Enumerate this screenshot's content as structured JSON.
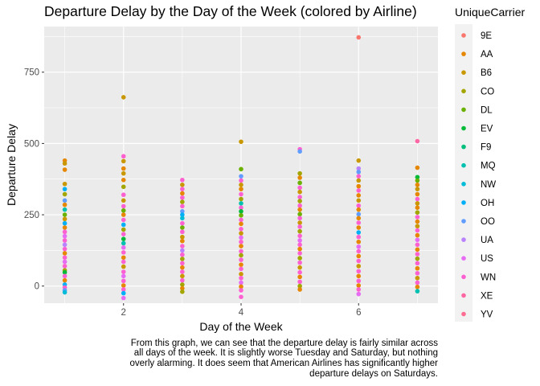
{
  "chart_data": {
    "type": "scatter",
    "title": "Departure Delay by the Day of the Week (colored by Airline)",
    "xlabel": "Day of the Week",
    "ylabel": "Departure Delay",
    "xlim": [
      0.65,
      7.35
    ],
    "ylim": [
      -60,
      910
    ],
    "x_ticks": [
      2,
      4,
      6
    ],
    "y_ticks": [
      0,
      250,
      500,
      750
    ],
    "grid": true,
    "legend": {
      "title": "UniqueCarrier",
      "position": "right",
      "entries": [
        {
          "name": "9E",
          "color": "#F8766D"
        },
        {
          "name": "AA",
          "color": "#E58700"
        },
        {
          "name": "B6",
          "color": "#C99800"
        },
        {
          "name": "CO",
          "color": "#A3A500"
        },
        {
          "name": "DL",
          "color": "#6BB100"
        },
        {
          "name": "EV",
          "color": "#00BA38"
        },
        {
          "name": "F9",
          "color": "#00BF7D"
        },
        {
          "name": "MQ",
          "color": "#00C0AF"
        },
        {
          "name": "NW",
          "color": "#00BCD8"
        },
        {
          "name": "OH",
          "color": "#00B0F6"
        },
        {
          "name": "OO",
          "color": "#619CFF"
        },
        {
          "name": "UA",
          "color": "#B983FF"
        },
        {
          "name": "US",
          "color": "#E76BF3"
        },
        {
          "name": "WN",
          "color": "#FD61D1"
        },
        {
          "name": "XE",
          "color": "#FF67A4"
        },
        {
          "name": "YV",
          "color": "#FF6C91"
        }
      ]
    },
    "points": [
      {
        "x": 1,
        "y": 440,
        "c": "AA"
      },
      {
        "x": 1,
        "y": 430,
        "c": "B6"
      },
      {
        "x": 1,
        "y": 408,
        "c": "AA"
      },
      {
        "x": 1,
        "y": 358,
        "c": "B6"
      },
      {
        "x": 1,
        "y": 340,
        "c": "OH"
      },
      {
        "x": 1,
        "y": 322,
        "c": "CO"
      },
      {
        "x": 1,
        "y": 300,
        "c": "OO"
      },
      {
        "x": 1,
        "y": 285,
        "c": "AA"
      },
      {
        "x": 1,
        "y": 268,
        "c": "MQ"
      },
      {
        "x": 1,
        "y": 250,
        "c": "DL"
      },
      {
        "x": 1,
        "y": 235,
        "c": "B6"
      },
      {
        "x": 1,
        "y": 220,
        "c": "OH"
      },
      {
        "x": 1,
        "y": 205,
        "c": "AA"
      },
      {
        "x": 1,
        "y": 190,
        "c": "WN"
      },
      {
        "x": 1,
        "y": 175,
        "c": "US"
      },
      {
        "x": 1,
        "y": 160,
        "c": "WN"
      },
      {
        "x": 1,
        "y": 145,
        "c": "UA"
      },
      {
        "x": 1,
        "y": 130,
        "c": "WN"
      },
      {
        "x": 1,
        "y": 115,
        "c": "AA"
      },
      {
        "x": 1,
        "y": 100,
        "c": "WN"
      },
      {
        "x": 1,
        "y": 85,
        "c": "US"
      },
      {
        "x": 1,
        "y": 70,
        "c": "WN"
      },
      {
        "x": 1,
        "y": 55,
        "c": "CO"
      },
      {
        "x": 1,
        "y": 48,
        "c": "EV"
      },
      {
        "x": 1,
        "y": 35,
        "c": "WN"
      },
      {
        "x": 1,
        "y": 20,
        "c": "AA"
      },
      {
        "x": 1,
        "y": 5,
        "c": "OH"
      },
      {
        "x": 1,
        "y": -5,
        "c": "WN"
      },
      {
        "x": 1,
        "y": -15,
        "c": "OO"
      },
      {
        "x": 1,
        "y": -22,
        "c": "NW"
      },
      {
        "x": 2,
        "y": 662,
        "c": "B6"
      },
      {
        "x": 2,
        "y": 455,
        "c": "WN"
      },
      {
        "x": 2,
        "y": 438,
        "c": "B6"
      },
      {
        "x": 2,
        "y": 412,
        "c": "AA"
      },
      {
        "x": 2,
        "y": 395,
        "c": "B6"
      },
      {
        "x": 2,
        "y": 372,
        "c": "AA"
      },
      {
        "x": 2,
        "y": 348,
        "c": "CO"
      },
      {
        "x": 2,
        "y": 320,
        "c": "WN"
      },
      {
        "x": 2,
        "y": 300,
        "c": "B6"
      },
      {
        "x": 2,
        "y": 280,
        "c": "WN"
      },
      {
        "x": 2,
        "y": 265,
        "c": "DL"
      },
      {
        "x": 2,
        "y": 250,
        "c": "AA"
      },
      {
        "x": 2,
        "y": 232,
        "c": "WN"
      },
      {
        "x": 2,
        "y": 215,
        "c": "OH"
      },
      {
        "x": 2,
        "y": 198,
        "c": "CO"
      },
      {
        "x": 2,
        "y": 182,
        "c": "WN"
      },
      {
        "x": 2,
        "y": 165,
        "c": "EV"
      },
      {
        "x": 2,
        "y": 150,
        "c": "MQ"
      },
      {
        "x": 2,
        "y": 135,
        "c": "US"
      },
      {
        "x": 2,
        "y": 118,
        "c": "WN"
      },
      {
        "x": 2,
        "y": 100,
        "c": "AA"
      },
      {
        "x": 2,
        "y": 85,
        "c": "WN"
      },
      {
        "x": 2,
        "y": 68,
        "c": "B6"
      },
      {
        "x": 2,
        "y": 50,
        "c": "WN"
      },
      {
        "x": 2,
        "y": 35,
        "c": "US"
      },
      {
        "x": 2,
        "y": 18,
        "c": "WN"
      },
      {
        "x": 2,
        "y": 2,
        "c": "AA"
      },
      {
        "x": 2,
        "y": -12,
        "c": "WN"
      },
      {
        "x": 2,
        "y": -25,
        "c": "OH"
      },
      {
        "x": 2,
        "y": -42,
        "c": "US"
      },
      {
        "x": 3,
        "y": 372,
        "c": "WN"
      },
      {
        "x": 3,
        "y": 355,
        "c": "B6"
      },
      {
        "x": 3,
        "y": 340,
        "c": "WN"
      },
      {
        "x": 3,
        "y": 325,
        "c": "AA"
      },
      {
        "x": 3,
        "y": 310,
        "c": "WN"
      },
      {
        "x": 3,
        "y": 295,
        "c": "CO"
      },
      {
        "x": 3,
        "y": 280,
        "c": "WN"
      },
      {
        "x": 3,
        "y": 262,
        "c": "OO"
      },
      {
        "x": 3,
        "y": 250,
        "c": "OH"
      },
      {
        "x": 3,
        "y": 238,
        "c": "NW"
      },
      {
        "x": 3,
        "y": 220,
        "c": "WN"
      },
      {
        "x": 3,
        "y": 205,
        "c": "DL"
      },
      {
        "x": 3,
        "y": 190,
        "c": "WN"
      },
      {
        "x": 3,
        "y": 172,
        "c": "B6"
      },
      {
        "x": 3,
        "y": 158,
        "c": "AA"
      },
      {
        "x": 3,
        "y": 140,
        "c": "WN"
      },
      {
        "x": 3,
        "y": 125,
        "c": "UA"
      },
      {
        "x": 3,
        "y": 110,
        "c": "WN"
      },
      {
        "x": 3,
        "y": 95,
        "c": "CO"
      },
      {
        "x": 3,
        "y": 80,
        "c": "WN"
      },
      {
        "x": 3,
        "y": 65,
        "c": "AA"
      },
      {
        "x": 3,
        "y": 50,
        "c": "WN"
      },
      {
        "x": 3,
        "y": 35,
        "c": "B6"
      },
      {
        "x": 3,
        "y": 20,
        "c": "WN"
      },
      {
        "x": 3,
        "y": 5,
        "c": "CO"
      },
      {
        "x": 3,
        "y": -8,
        "c": "AA"
      },
      {
        "x": 3,
        "y": -20,
        "c": "CO"
      },
      {
        "x": 4,
        "y": 506,
        "c": "B6"
      },
      {
        "x": 4,
        "y": 410,
        "c": "DL"
      },
      {
        "x": 4,
        "y": 385,
        "c": "OO"
      },
      {
        "x": 4,
        "y": 370,
        "c": "WN"
      },
      {
        "x": 4,
        "y": 355,
        "c": "B6"
      },
      {
        "x": 4,
        "y": 340,
        "c": "AA"
      },
      {
        "x": 4,
        "y": 322,
        "c": "WN"
      },
      {
        "x": 4,
        "y": 305,
        "c": "CO"
      },
      {
        "x": 4,
        "y": 290,
        "c": "MQ"
      },
      {
        "x": 4,
        "y": 275,
        "c": "WN"
      },
      {
        "x": 4,
        "y": 262,
        "c": "EV"
      },
      {
        "x": 4,
        "y": 248,
        "c": "DL"
      },
      {
        "x": 4,
        "y": 232,
        "c": "WN"
      },
      {
        "x": 4,
        "y": 218,
        "c": "AA"
      },
      {
        "x": 4,
        "y": 200,
        "c": "WN"
      },
      {
        "x": 4,
        "y": 185,
        "c": "B6"
      },
      {
        "x": 4,
        "y": 170,
        "c": "US"
      },
      {
        "x": 4,
        "y": 155,
        "c": "WN"
      },
      {
        "x": 4,
        "y": 140,
        "c": "AA"
      },
      {
        "x": 4,
        "y": 122,
        "c": "WN"
      },
      {
        "x": 4,
        "y": 108,
        "c": "CO"
      },
      {
        "x": 4,
        "y": 92,
        "c": "WN"
      },
      {
        "x": 4,
        "y": 75,
        "c": "AA"
      },
      {
        "x": 4,
        "y": 60,
        "c": "WN"
      },
      {
        "x": 4,
        "y": 42,
        "c": "B6"
      },
      {
        "x": 4,
        "y": 28,
        "c": "WN"
      },
      {
        "x": 4,
        "y": 12,
        "c": "US"
      },
      {
        "x": 4,
        "y": -2,
        "c": "AA"
      },
      {
        "x": 4,
        "y": -15,
        "c": "WN"
      },
      {
        "x": 4,
        "y": -38,
        "c": "WN"
      },
      {
        "x": 5,
        "y": 480,
        "c": "WN"
      },
      {
        "x": 5,
        "y": 472,
        "c": "OO"
      },
      {
        "x": 5,
        "y": 395,
        "c": "CO"
      },
      {
        "x": 5,
        "y": 380,
        "c": "AA"
      },
      {
        "x": 5,
        "y": 362,
        "c": "DL"
      },
      {
        "x": 5,
        "y": 345,
        "c": "WN"
      },
      {
        "x": 5,
        "y": 330,
        "c": "B6"
      },
      {
        "x": 5,
        "y": 312,
        "c": "WN"
      },
      {
        "x": 5,
        "y": 298,
        "c": "CO"
      },
      {
        "x": 5,
        "y": 282,
        "c": "WN"
      },
      {
        "x": 5,
        "y": 268,
        "c": "AA"
      },
      {
        "x": 5,
        "y": 252,
        "c": "DL"
      },
      {
        "x": 5,
        "y": 238,
        "c": "WN"
      },
      {
        "x": 5,
        "y": 222,
        "c": "B6"
      },
      {
        "x": 5,
        "y": 208,
        "c": "WN"
      },
      {
        "x": 5,
        "y": 192,
        "c": "CO"
      },
      {
        "x": 5,
        "y": 176,
        "c": "WN"
      },
      {
        "x": 5,
        "y": 160,
        "c": "US"
      },
      {
        "x": 5,
        "y": 145,
        "c": "WN"
      },
      {
        "x": 5,
        "y": 130,
        "c": "AA"
      },
      {
        "x": 5,
        "y": 115,
        "c": "WN"
      },
      {
        "x": 5,
        "y": 98,
        "c": "CO"
      },
      {
        "x": 5,
        "y": 82,
        "c": "WN"
      },
      {
        "x": 5,
        "y": 65,
        "c": "B6"
      },
      {
        "x": 5,
        "y": 48,
        "c": "WN"
      },
      {
        "x": 5,
        "y": 32,
        "c": "AA"
      },
      {
        "x": 5,
        "y": 15,
        "c": "WN"
      },
      {
        "x": 5,
        "y": 0,
        "c": "CO"
      },
      {
        "x": 5,
        "y": -12,
        "c": "AA"
      },
      {
        "x": 6,
        "y": 872,
        "c": "9E"
      },
      {
        "x": 6,
        "y": 440,
        "c": "B6"
      },
      {
        "x": 6,
        "y": 412,
        "c": "UA"
      },
      {
        "x": 6,
        "y": 400,
        "c": "OO"
      },
      {
        "x": 6,
        "y": 385,
        "c": "WN"
      },
      {
        "x": 6,
        "y": 370,
        "c": "B6"
      },
      {
        "x": 6,
        "y": 350,
        "c": "AA"
      },
      {
        "x": 6,
        "y": 335,
        "c": "WN"
      },
      {
        "x": 6,
        "y": 318,
        "c": "AA"
      },
      {
        "x": 6,
        "y": 300,
        "c": "B6"
      },
      {
        "x": 6,
        "y": 282,
        "c": "WN"
      },
      {
        "x": 6,
        "y": 268,
        "c": "AA"
      },
      {
        "x": 6,
        "y": 252,
        "c": "OO"
      },
      {
        "x": 6,
        "y": 238,
        "c": "AA"
      },
      {
        "x": 6,
        "y": 222,
        "c": "WN"
      },
      {
        "x": 6,
        "y": 205,
        "c": "AA"
      },
      {
        "x": 6,
        "y": 188,
        "c": "OH"
      },
      {
        "x": 6,
        "y": 172,
        "c": "WN"
      },
      {
        "x": 6,
        "y": 155,
        "c": "AA"
      },
      {
        "x": 6,
        "y": 138,
        "c": "US"
      },
      {
        "x": 6,
        "y": 122,
        "c": "WN"
      },
      {
        "x": 6,
        "y": 105,
        "c": "AA"
      },
      {
        "x": 6,
        "y": 88,
        "c": "WN"
      },
      {
        "x": 6,
        "y": 70,
        "c": "B6"
      },
      {
        "x": 6,
        "y": 52,
        "c": "WN"
      },
      {
        "x": 6,
        "y": 35,
        "c": "AA"
      },
      {
        "x": 6,
        "y": 18,
        "c": "WN"
      },
      {
        "x": 6,
        "y": 2,
        "c": "AA"
      },
      {
        "x": 6,
        "y": -12,
        "c": "WN"
      },
      {
        "x": 6,
        "y": -28,
        "c": "US"
      },
      {
        "x": 7,
        "y": 508,
        "c": "XE"
      },
      {
        "x": 7,
        "y": 415,
        "c": "AA"
      },
      {
        "x": 7,
        "y": 382,
        "c": "EV"
      },
      {
        "x": 7,
        "y": 370,
        "c": "DL"
      },
      {
        "x": 7,
        "y": 355,
        "c": "AA"
      },
      {
        "x": 7,
        "y": 340,
        "c": "B6"
      },
      {
        "x": 7,
        "y": 322,
        "c": "AA"
      },
      {
        "x": 7,
        "y": 305,
        "c": "WN"
      },
      {
        "x": 7,
        "y": 290,
        "c": "B6"
      },
      {
        "x": 7,
        "y": 275,
        "c": "AA"
      },
      {
        "x": 7,
        "y": 258,
        "c": "CO"
      },
      {
        "x": 7,
        "y": 242,
        "c": "WN"
      },
      {
        "x": 7,
        "y": 226,
        "c": "AA"
      },
      {
        "x": 7,
        "y": 210,
        "c": "B6"
      },
      {
        "x": 7,
        "y": 195,
        "c": "WN"
      },
      {
        "x": 7,
        "y": 178,
        "c": "AA"
      },
      {
        "x": 7,
        "y": 162,
        "c": "US"
      },
      {
        "x": 7,
        "y": 145,
        "c": "WN"
      },
      {
        "x": 7,
        "y": 128,
        "c": "AA"
      },
      {
        "x": 7,
        "y": 112,
        "c": "WN"
      },
      {
        "x": 7,
        "y": 96,
        "c": "CO"
      },
      {
        "x": 7,
        "y": 80,
        "c": "WN"
      },
      {
        "x": 7,
        "y": 62,
        "c": "AA"
      },
      {
        "x": 7,
        "y": 45,
        "c": "WN"
      },
      {
        "x": 7,
        "y": 28,
        "c": "B6"
      },
      {
        "x": 7,
        "y": 12,
        "c": "WN"
      },
      {
        "x": 7,
        "y": -3,
        "c": "AA"
      },
      {
        "x": 7,
        "y": -18,
        "c": "MQ"
      }
    ]
  },
  "caption": [
    "From this graph, we can see that the departure delay is fairly similar across",
    "all days of the week. It is slightly worse Tuesday and Saturday, but nothing",
    "overly alarming. It does seem that American Airlines has significantly higher",
    "departure delays on Saturdays."
  ]
}
